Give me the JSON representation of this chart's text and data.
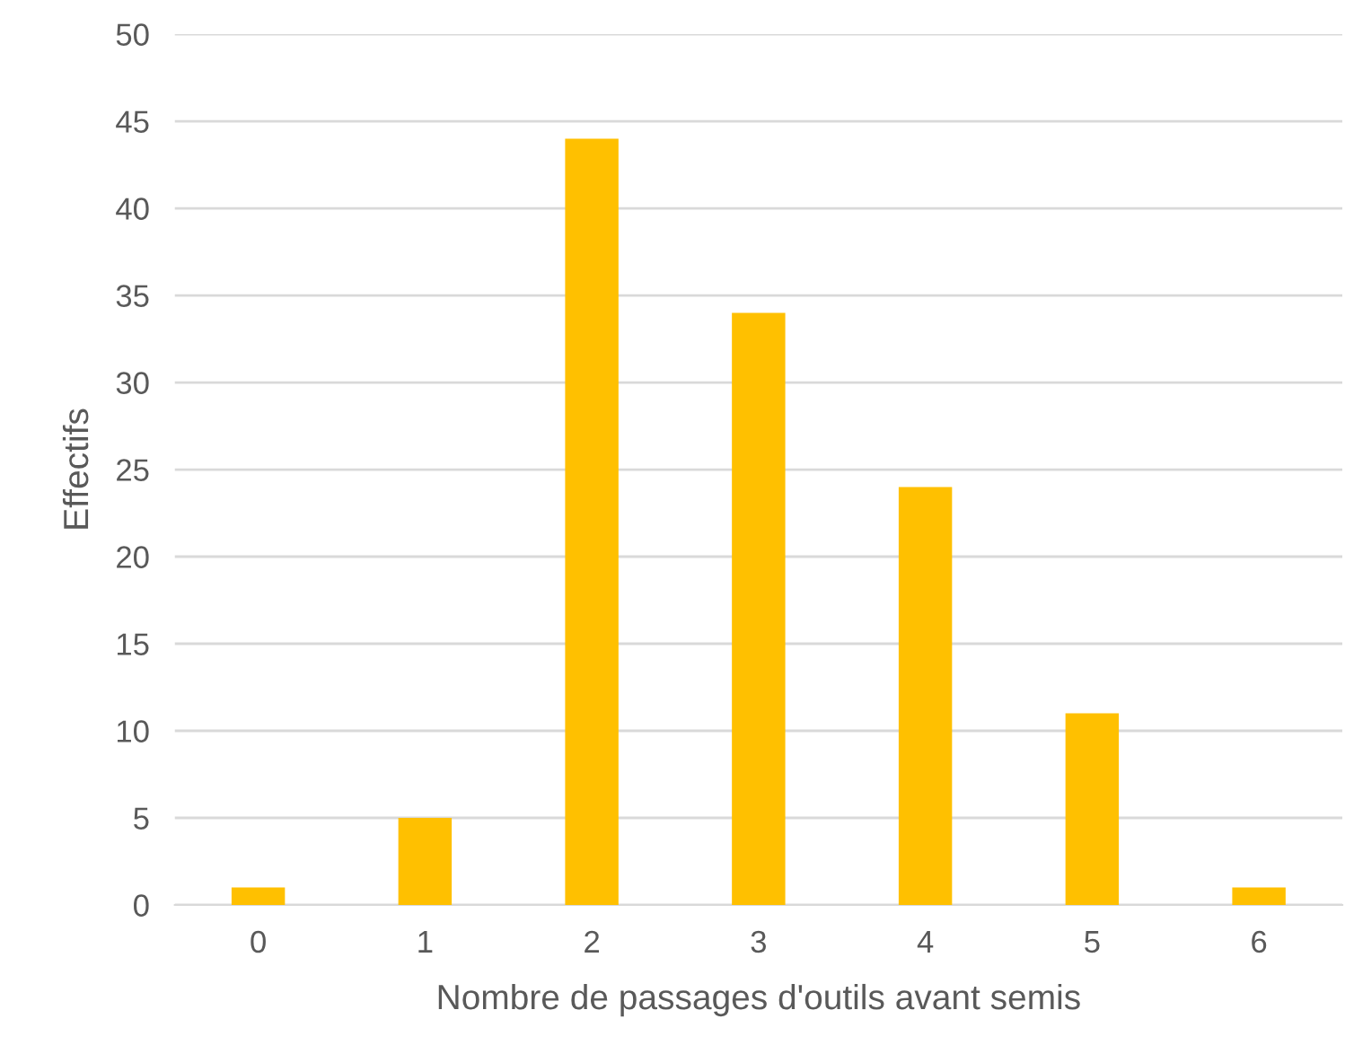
{
  "chart_data": {
    "type": "bar",
    "xlabel": "Nombre de passages d'outils avant semis",
    "ylabel": "Effectifs",
    "categories": [
      "0",
      "1",
      "2",
      "3",
      "4",
      "5",
      "6"
    ],
    "values": [
      1,
      5,
      44,
      34,
      24,
      11,
      1
    ],
    "color": "#ffc000",
    "ylim": [
      0,
      50
    ],
    "yticks": [
      0,
      5,
      10,
      15,
      20,
      25,
      30,
      35,
      40,
      45,
      50
    ],
    "grid": "y",
    "legend": false
  }
}
